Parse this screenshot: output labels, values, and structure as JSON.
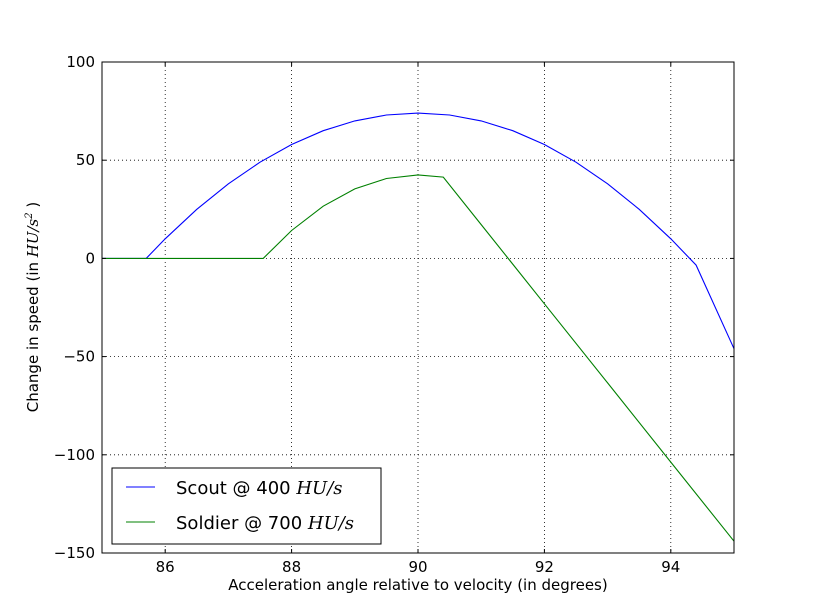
{
  "chart_data": {
    "type": "line",
    "title": "",
    "xlabel": "Acceleration angle relative to velocity (in degrees)",
    "ylabel": {
      "prefix": "Change in speed (in ",
      "math": "HU/s",
      "sup": "2",
      "suffix": " )"
    },
    "xlim": [
      85,
      95
    ],
    "ylim": [
      -150,
      100
    ],
    "xticks": [
      86,
      88,
      90,
      92,
      94
    ],
    "yticks": [
      -150,
      -100,
      -50,
      0,
      50,
      100
    ],
    "xtick_labels": [
      "86",
      "88",
      "90",
      "92",
      "94"
    ],
    "ytick_labels": [
      "−150",
      "−100",
      "−50",
      "0",
      "50",
      "100"
    ],
    "grid": true,
    "legend_position": "lower-left",
    "series": [
      {
        "name": "Scout @ 400",
        "name_math": "HU/s",
        "color": "#0000ff",
        "x": [
          85,
          85.7,
          86,
          86.5,
          87,
          87.5,
          88,
          88.5,
          89,
          89.5,
          90,
          90.5,
          91,
          91.5,
          92,
          92.5,
          93,
          93.5,
          94,
          94.4,
          95
        ],
        "y": [
          0,
          0,
          10,
          25,
          38,
          49,
          58,
          65,
          70,
          73,
          74,
          73,
          70,
          65,
          58,
          49,
          38,
          25,
          10,
          -3.4,
          -46
        ]
      },
      {
        "name": "Soldier @ 700",
        "name_math": "HU/s",
        "color": "#008000",
        "x": [
          85,
          87.55,
          88,
          88.5,
          89,
          89.5,
          90,
          90.4,
          91,
          92,
          93,
          94,
          95
        ],
        "y": [
          0,
          0,
          14.2,
          26.6,
          35.4,
          40.7,
          42.5,
          41.4,
          17.2,
          -23.1,
          -63.4,
          -103.7,
          -144
        ]
      }
    ]
  }
}
